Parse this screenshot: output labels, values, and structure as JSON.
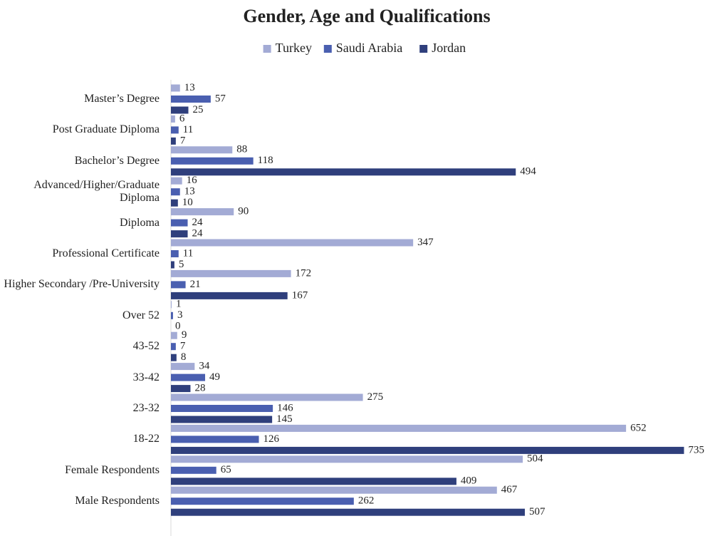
{
  "chart_data": {
    "type": "barh",
    "title": "Gender, Age and Qualifications",
    "categories": [
      "Master’s Degree",
      "Post Graduate Diploma",
      "Bachelor’s Degree",
      "Advanced/Higher/Graduate Diploma",
      "Diploma",
      "Professional Certificate",
      "Higher Secondary /Pre-University",
      "Over 52",
      "43-52",
      "33-42",
      "23-32",
      "18-22",
      "Female Respondents",
      "Male Respondents"
    ],
    "series": [
      {
        "name": "Turkey",
        "color": "#a3abd5",
        "values": [
          13,
          6,
          88,
          16,
          90,
          347,
          172,
          1,
          9,
          34,
          275,
          652,
          504,
          467
        ]
      },
      {
        "name": "Saudi Arabia",
        "color": "#4a5fb0",
        "values": [
          57,
          11,
          118,
          13,
          24,
          11,
          21,
          3,
          7,
          49,
          146,
          126,
          65,
          262
        ]
      },
      {
        "name": "Jordan",
        "color": "#2f3f7c",
        "values": [
          25,
          7,
          494,
          10,
          24,
          5,
          167,
          0,
          8,
          28,
          145,
          735,
          409,
          507
        ]
      }
    ],
    "xlim": [
      0,
      760
    ]
  }
}
